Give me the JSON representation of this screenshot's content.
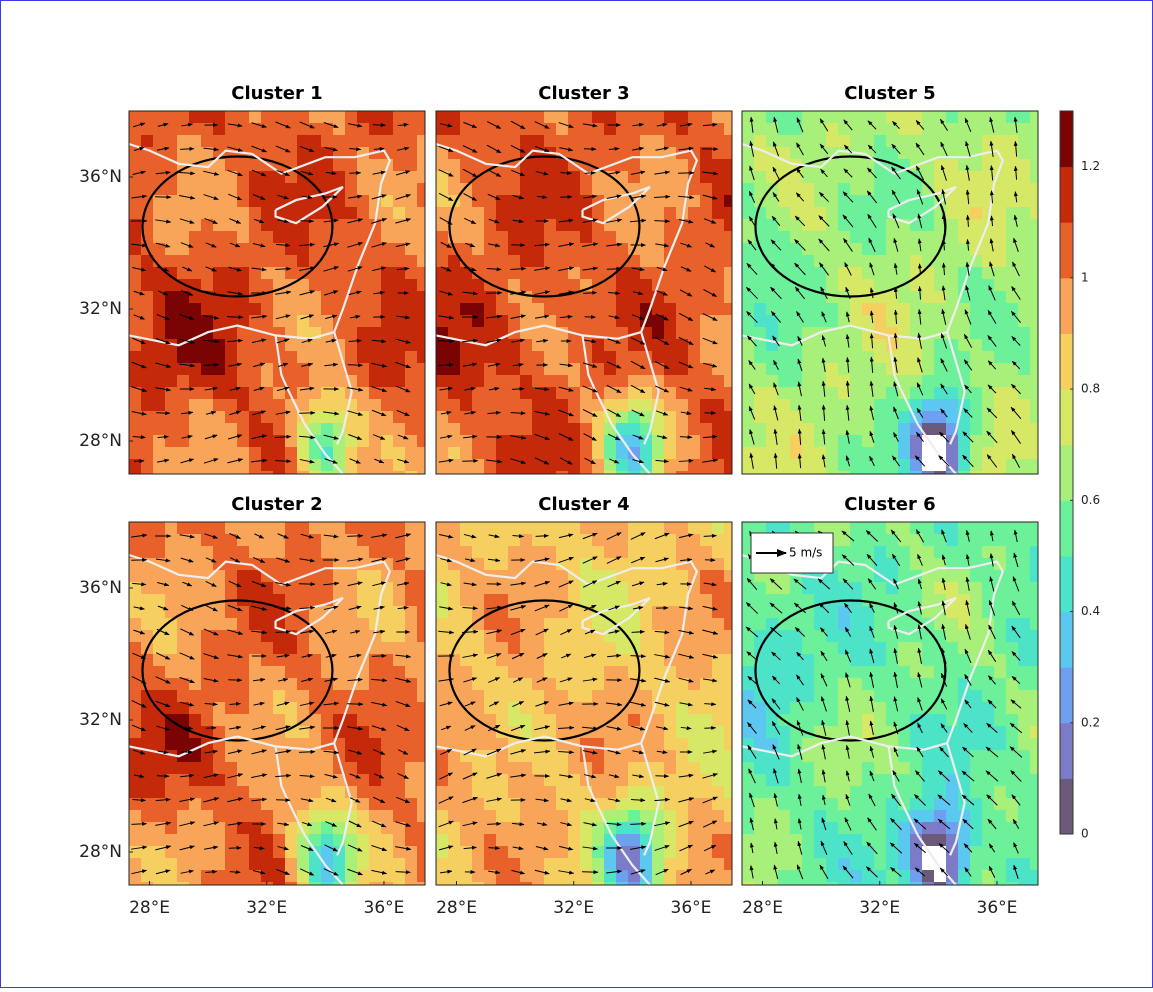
{
  "chart_data": [
    {
      "type": "contour",
      "title": "Cluster 1",
      "xlim": [
        27.3,
        37.4
      ],
      "ylim": [
        27,
        38
      ],
      "yticks": [
        {
          "value": 28,
          "label": "28°N"
        },
        {
          "value": 32,
          "label": "32°N"
        },
        {
          "value": 36,
          "label": "36°N"
        }
      ]
    },
    {
      "type": "contour",
      "title": "Cluster 2",
      "xlim": [
        27.3,
        37.4
      ],
      "ylim": [
        27,
        38
      ],
      "xticks": [
        {
          "value": 28,
          "label": "28°E"
        },
        {
          "value": 32,
          "label": "32°E"
        },
        {
          "value": 36,
          "label": "36°E"
        }
      ],
      "yticks": [
        {
          "value": 28,
          "label": "28°N"
        },
        {
          "value": 32,
          "label": "32°N"
        },
        {
          "value": 36,
          "label": "36°N"
        }
      ]
    },
    {
      "type": "contour",
      "title": "Cluster 3",
      "xlim": [
        27.3,
        37.4
      ],
      "ylim": [
        27,
        38
      ]
    },
    {
      "type": "contour",
      "title": "Cluster 4",
      "xlim": [
        27.3,
        37.4
      ],
      "ylim": [
        27,
        38
      ],
      "xticks": [
        {
          "value": 28,
          "label": "28°E"
        },
        {
          "value": 32,
          "label": "32°E"
        },
        {
          "value": 36,
          "label": "36°E"
        }
      ]
    },
    {
      "type": "contour",
      "title": "Cluster 5",
      "xlim": [
        27.3,
        37.4
      ],
      "ylim": [
        27,
        38
      ]
    },
    {
      "type": "contour",
      "title": "Cluster 6",
      "xlim": [
        27.3,
        37.4
      ],
      "ylim": [
        27,
        38
      ],
      "xticks": [
        {
          "value": 28,
          "label": "28°E"
        },
        {
          "value": 32,
          "label": "32°E"
        },
        {
          "value": 36,
          "label": "36°E"
        }
      ],
      "quiver_key": "5 m/s"
    }
  ],
  "colorbar": {
    "lim": [
      0,
      1.3
    ],
    "ticks": [
      0,
      0.2,
      0.4,
      0.6,
      0.8,
      1,
      1.2
    ],
    "colors": [
      "#6b5a7a",
      "#7b7bc8",
      "#6fa0ef",
      "#5cc8ef",
      "#4de3c8",
      "#6df09a",
      "#a8f07a",
      "#d6e866",
      "#f5d060",
      "#f8a55a",
      "#e8602a",
      "#c42a0a",
      "#7a0403"
    ]
  }
}
